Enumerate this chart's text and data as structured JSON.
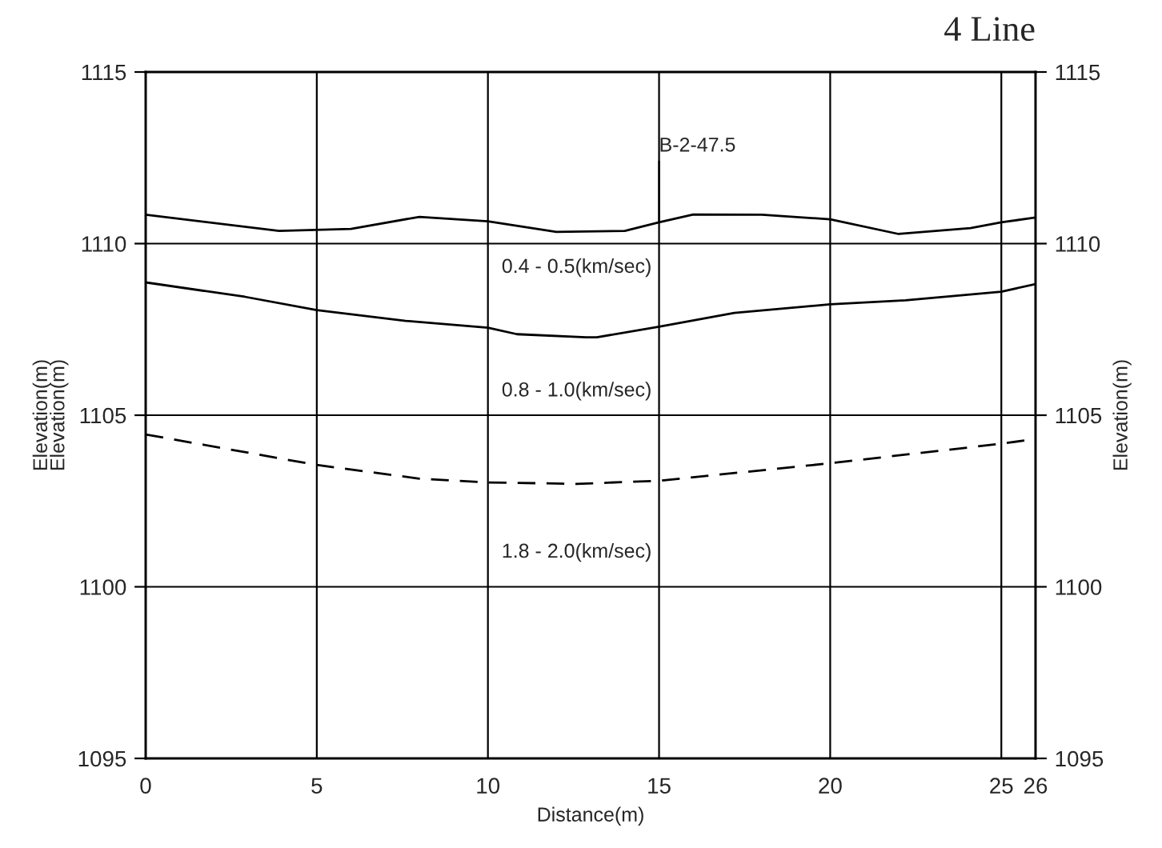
{
  "chart_data": {
    "type": "line",
    "title": "4 Line",
    "xlabel": "Distance(m)",
    "ylabel": "Elevation(m)\nElevation(m)",
    "y2label": "Elevation(m)",
    "xlim": [
      0,
      26
    ],
    "xticks": [
      0,
      5,
      10,
      15,
      20,
      25,
      26
    ],
    "ylim": [
      1095,
      1115
    ],
    "yticks": [
      1095,
      1100,
      1105,
      1110,
      1115
    ],
    "y2lim": [
      1095,
      1115
    ],
    "y2ticks": [
      1095,
      1100,
      1105,
      1110,
      1115
    ],
    "grid": true,
    "legend": false,
    "marker": "none",
    "series": [
      {
        "color": "#000000",
        "line_style": "solid",
        "x": [
          0,
          3.9,
          6.0,
          8.0,
          10,
          12,
          14.0,
          15,
          16,
          18,
          20,
          22,
          24.1,
          25,
          26
        ],
        "values": [
          1110.84,
          1110.37,
          1110.43,
          1110.78,
          1110.65,
          1110.34,
          1110.37,
          1110.62,
          1110.85,
          1110.84,
          1110.71,
          1110.28,
          1110.45,
          1110.62,
          1110.76
        ]
      },
      {
        "color": "#000000",
        "line_style": "solid",
        "x": [
          0,
          2.9,
          5,
          7.6,
          10,
          10.85,
          12.87,
          13.18,
          15,
          17.2,
          20,
          22.2,
          25,
          26
        ],
        "values": [
          1108.87,
          1108.45,
          1108.06,
          1107.75,
          1107.55,
          1107.36,
          1107.27,
          1107.27,
          1107.58,
          1107.98,
          1108.23,
          1108.35,
          1108.6,
          1108.82
        ]
      },
      {
        "color": "#000000",
        "line_style": "dashed",
        "x": [
          0,
          5,
          8.0,
          10,
          12.6,
          15,
          20,
          25,
          25.8
        ],
        "values": [
          1104.44,
          1103.55,
          1103.15,
          1103.04,
          1103.0,
          1103.09,
          1103.6,
          1104.17,
          1104.28
        ]
      }
    ],
    "annotations": [
      {
        "text": "B-2-47.5",
        "x": 15,
        "y": 1110.62
      },
      "0.4 - 0.5(km/sec)",
      "0.8 - 1.0(km/sec)",
      "1.8 - 2.0(km/sec)"
    ]
  }
}
